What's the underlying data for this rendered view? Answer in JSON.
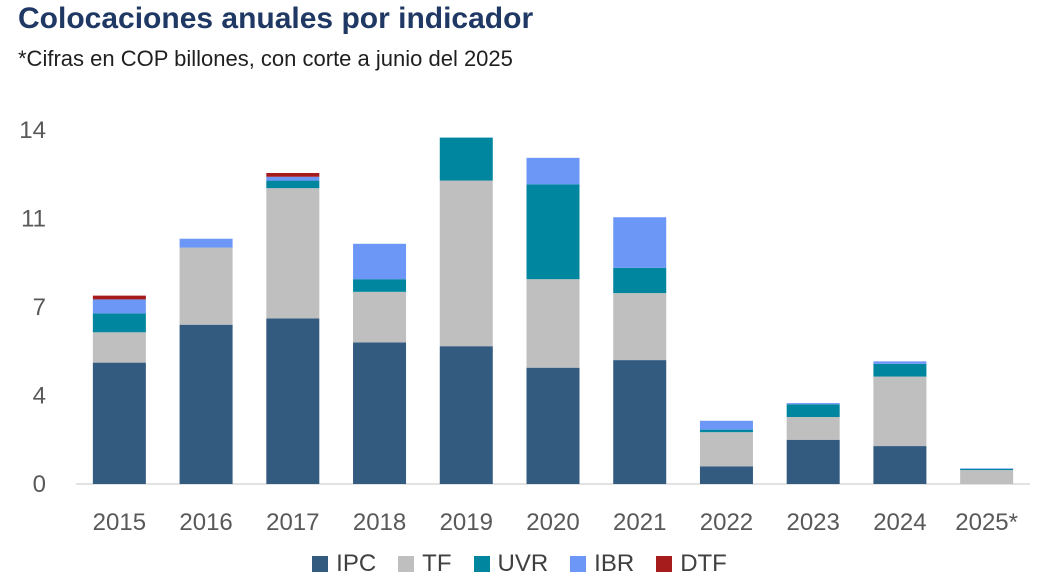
{
  "header": {
    "title": "Colocaciones anuales por indicador",
    "subtitle": "*Cifras en COP billones, con corte a junio del 2025"
  },
  "chart_data": {
    "type": "bar",
    "stacked": true,
    "categories": [
      "2015",
      "2016",
      "2017",
      "2018",
      "2019",
      "2020",
      "2021",
      "2022",
      "2023",
      "2024",
      "2025*"
    ],
    "y_ticks": [
      "0",
      "4",
      "7",
      "11",
      "14"
    ],
    "ylim": [
      0,
      14
    ],
    "grid": false,
    "legend_position": "bottom",
    "series": [
      {
        "name": "IPC",
        "color": "#335a7f",
        "values": [
          4.8,
          6.3,
          6.55,
          5.6,
          5.45,
          4.6,
          4.9,
          0.7,
          1.75,
          1.5,
          0.0
        ]
      },
      {
        "name": "TF",
        "color": "#bfbfbf",
        "values": [
          1.2,
          3.05,
          5.15,
          2.0,
          6.55,
          3.5,
          2.65,
          1.35,
          0.9,
          2.75,
          0.55
        ]
      },
      {
        "name": "UVR",
        "color": "#00869f",
        "values": [
          0.75,
          0.0,
          0.3,
          0.5,
          1.7,
          3.75,
          1.0,
          0.1,
          0.5,
          0.5,
          0.05
        ]
      },
      {
        "name": "IBR",
        "color": "#6c97f6",
        "values": [
          0.55,
          0.35,
          0.15,
          1.4,
          0.0,
          1.05,
          2.0,
          0.35,
          0.05,
          0.1,
          0.02
        ]
      },
      {
        "name": "DTF",
        "color": "#a61c1c",
        "values": [
          0.15,
          0.0,
          0.15,
          0.0,
          0.0,
          0.0,
          0.0,
          0.0,
          0.0,
          0.0,
          0.0
        ]
      }
    ]
  }
}
